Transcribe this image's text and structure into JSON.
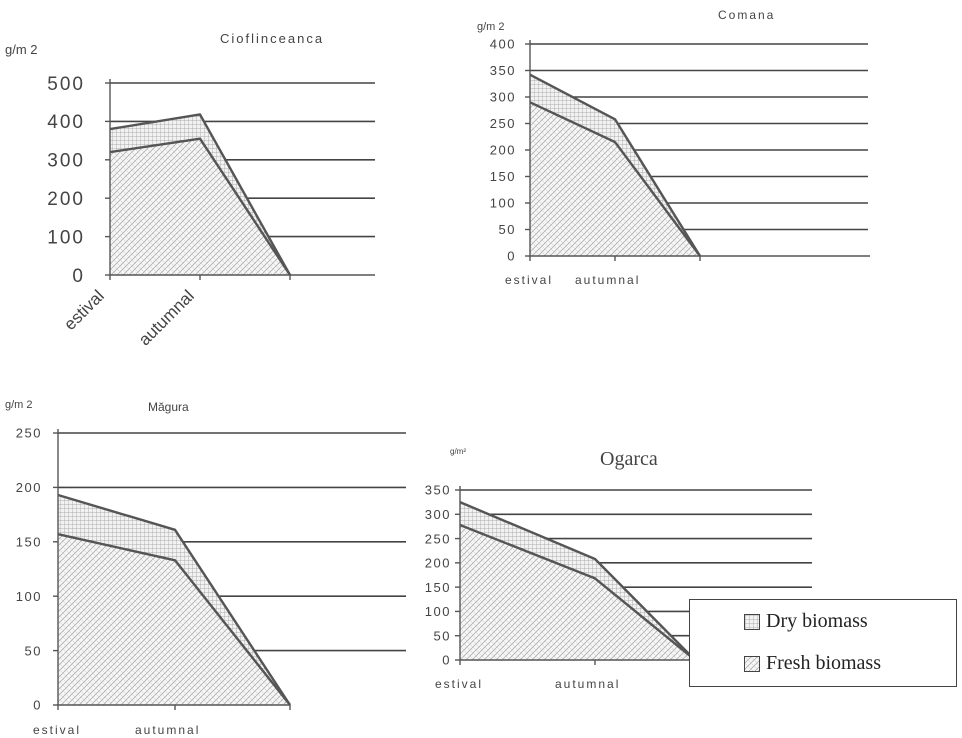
{
  "legend": {
    "dry_label": "Dry biomass",
    "fresh_label": "Fresh biomass",
    "dry_pattern": "grid-crosshatch",
    "fresh_pattern": "diagonal-crosshatch"
  },
  "chart_data": [
    {
      "type": "area",
      "title": "Cioflinceanca",
      "ylabel": "g/m 2",
      "categories": [
        "estival",
        "autumnal",
        ""
      ],
      "ylim": [
        0,
        500
      ],
      "yticks": [
        0,
        100,
        200,
        300,
        400,
        500
      ],
      "grid": true,
      "stacked": true,
      "series": [
        {
          "name": "Fresh biomass",
          "values": [
            320,
            355,
            0
          ]
        },
        {
          "name": "Dry biomass",
          "values": [
            60,
            63,
            0
          ]
        }
      ]
    },
    {
      "type": "area",
      "title": "Comana",
      "ylabel": "g/m 2",
      "categories": [
        "estival",
        "autumnal",
        ""
      ],
      "ylim": [
        0,
        400
      ],
      "yticks": [
        0,
        50,
        100,
        150,
        200,
        250,
        300,
        350,
        400
      ],
      "grid": true,
      "stacked": true,
      "series": [
        {
          "name": "Fresh biomass",
          "values": [
            290,
            215,
            0
          ]
        },
        {
          "name": "Dry biomass",
          "values": [
            52,
            43,
            0
          ]
        }
      ]
    },
    {
      "type": "area",
      "title": "Măgura",
      "ylabel": "g/m 2",
      "categories": [
        "estival",
        "autumnal",
        ""
      ],
      "ylim": [
        0,
        250
      ],
      "yticks": [
        0,
        50,
        100,
        150,
        200,
        250
      ],
      "grid": true,
      "stacked": true,
      "series": [
        {
          "name": "Fresh biomass",
          "values": [
            157,
            133,
            0
          ]
        },
        {
          "name": "Dry biomass",
          "values": [
            36,
            28,
            0
          ]
        }
      ]
    },
    {
      "type": "area",
      "title": "Ogarca",
      "ylabel": "g/m²",
      "categories": [
        "estival",
        "autumnal",
        ""
      ],
      "ylim": [
        0,
        350
      ],
      "yticks": [
        0,
        50,
        100,
        150,
        200,
        250,
        300,
        350
      ],
      "grid": true,
      "stacked": true,
      "series": [
        {
          "name": "Fresh biomass",
          "values": [
            278,
            168,
            0
          ]
        },
        {
          "name": "Dry biomass",
          "values": [
            47,
            40,
            0
          ]
        }
      ]
    }
  ]
}
